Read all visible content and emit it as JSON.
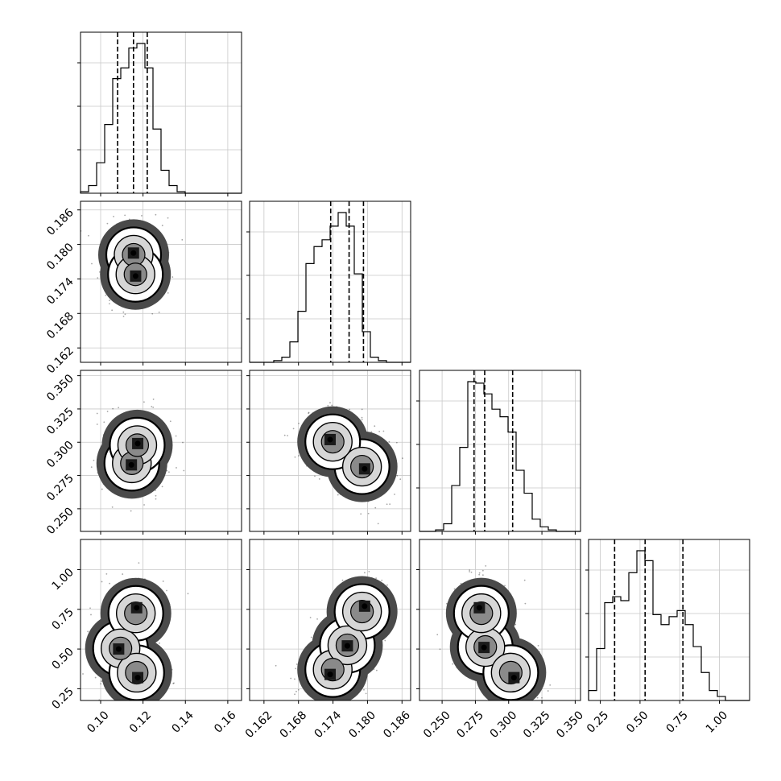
{
  "chart_data": {
    "type": "corner",
    "grid": true,
    "parameters": [
      {
        "ticks": [
          0.1,
          0.12,
          0.14,
          0.16
        ],
        "tick_labels": [
          "0.10",
          "0.12",
          "0.14",
          "0.16"
        ],
        "range": [
          0.0905,
          0.1665
        ]
      },
      {
        "ticks": [
          0.162,
          0.168,
          0.174,
          0.18,
          0.186
        ],
        "tick_labels": [
          "0.162",
          "0.168",
          "0.174",
          "0.180",
          "0.186"
        ],
        "range": [
          0.1595,
          0.1875
        ]
      },
      {
        "ticks": [
          0.25,
          0.275,
          0.3,
          0.325,
          0.35
        ],
        "tick_labels": [
          "0.250",
          "0.275",
          "0.300",
          "0.325",
          "0.350"
        ],
        "range": [
          0.233,
          0.354
        ]
      },
      {
        "ticks": [
          0.25,
          0.5,
          0.75,
          1.0
        ],
        "tick_labels": [
          "0.25",
          "0.50",
          "0.75",
          "1.00"
        ],
        "range": [
          0.176,
          1.19
        ]
      }
    ],
    "histograms": [
      {
        "param": 0,
        "edges": [
          0.0905,
          0.0943,
          0.0981,
          0.1019,
          0.1057,
          0.1095,
          0.1133,
          0.1171,
          0.1209,
          0.1247,
          0.1285,
          0.1323,
          0.1361,
          0.1399,
          0.1437,
          0.1475,
          0.1513,
          0.1551,
          0.1589,
          0.1627,
          0.1665
        ],
        "counts": [
          1,
          5,
          20,
          45,
          75,
          82,
          95,
          98,
          82,
          42,
          15,
          5,
          1,
          0,
          0,
          0,
          0,
          0,
          0,
          0
        ],
        "quantiles": [
          0.108,
          0.1155,
          0.122
        ]
      },
      {
        "param": 1,
        "edges": [
          0.1595,
          0.1609,
          0.1623,
          0.1637,
          0.1651,
          0.1665,
          0.1679,
          0.1693,
          0.1707,
          0.1721,
          0.1735,
          0.1749,
          0.1763,
          0.1777,
          0.1791,
          0.1805,
          0.1819,
          0.1833,
          0.1847,
          0.1861,
          0.1875
        ],
        "counts": [
          0,
          0,
          0,
          1,
          3,
          12,
          30,
          58,
          68,
          72,
          80,
          88,
          80,
          52,
          18,
          3,
          1,
          0,
          0,
          0
        ],
        "quantiles": [
          0.1736,
          0.1768,
          0.1793
        ]
      },
      {
        "param": 2,
        "edges": [
          0.233,
          0.23905,
          0.2451,
          0.25115,
          0.2572,
          0.26325,
          0.2693,
          0.27535,
          0.2814,
          0.28745,
          0.2935,
          0.29955,
          0.3056,
          0.31165,
          0.3177,
          0.32375,
          0.3298,
          0.33585,
          0.3419,
          0.34795,
          0.354
        ],
        "counts": [
          0,
          0,
          1,
          5,
          30,
          55,
          98,
          97,
          90,
          80,
          75,
          65,
          40,
          25,
          8,
          3,
          1,
          0,
          0,
          0
        ],
        "quantiles": [
          0.274,
          0.282,
          0.303
        ]
      },
      {
        "param": 3,
        "edges": [
          0.176,
          0.2267,
          0.2774,
          0.3281,
          0.3788,
          0.4295,
          0.4802,
          0.5309,
          0.5816,
          0.6323,
          0.683,
          0.7337,
          0.7844,
          0.8351,
          0.8858,
          0.9365,
          0.9872,
          1.0379,
          1.0886,
          1.1393,
          1.19
        ],
        "counts": [
          5,
          26,
          49,
          52,
          50,
          64,
          75,
          70,
          43,
          38,
          42,
          45,
          38,
          27,
          14,
          5,
          2,
          0,
          0,
          0
        ],
        "quantiles": [
          0.34,
          0.532,
          0.77
        ]
      }
    ],
    "joint_distributions": [
      {
        "x_param": 0,
        "y_param": 1,
        "modes": [
          {
            "x": 0.1155,
            "y": 0.1785
          },
          {
            "x": 0.1165,
            "y": 0.1745
          }
        ]
      },
      {
        "x_param": 0,
        "y_param": 2,
        "modes": [
          {
            "x": 0.1145,
            "y": 0.283
          },
          {
            "x": 0.1175,
            "y": 0.299
          }
        ]
      },
      {
        "x_param": 1,
        "y_param": 2,
        "modes": [
          {
            "x": 0.1795,
            "y": 0.28
          },
          {
            "x": 0.1735,
            "y": 0.302
          }
        ]
      },
      {
        "x_param": 0,
        "y_param": 3,
        "modes": [
          {
            "x": 0.1085,
            "y": 0.5
          },
          {
            "x": 0.117,
            "y": 0.76
          },
          {
            "x": 0.1175,
            "y": 0.32
          }
        ]
      },
      {
        "x_param": 1,
        "y_param": 3,
        "modes": [
          {
            "x": 0.1735,
            "y": 0.34
          },
          {
            "x": 0.1765,
            "y": 0.52
          },
          {
            "x": 0.1795,
            "y": 0.77
          }
        ]
      },
      {
        "x_param": 2,
        "y_param": 3,
        "modes": [
          {
            "x": 0.2815,
            "y": 0.51
          },
          {
            "x": 0.278,
            "y": 0.76
          },
          {
            "x": 0.304,
            "y": 0.32
          }
        ]
      }
    ]
  }
}
